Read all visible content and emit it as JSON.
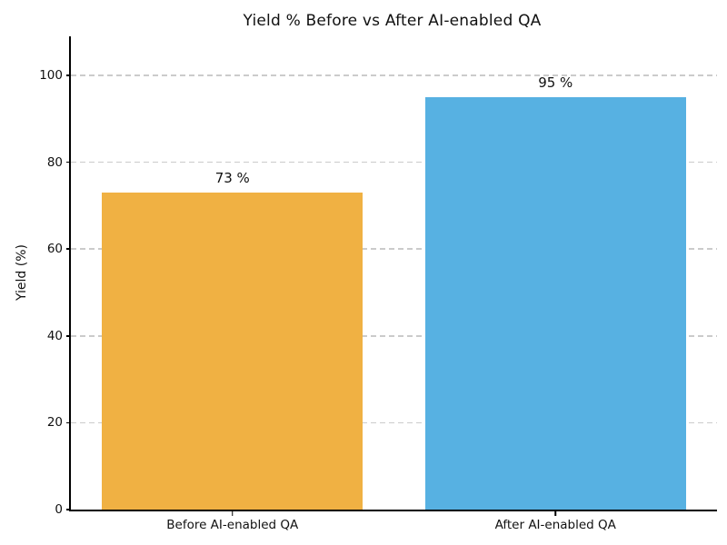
{
  "chart_data": {
    "type": "bar",
    "title": "Yield % Before vs After AI-enabled QA",
    "ylabel": "Yield (%)",
    "categories": [
      "Before AI-enabled QA",
      "After AI-enabled QA"
    ],
    "values": [
      73,
      95
    ],
    "value_labels": [
      "73 %",
      "95 %"
    ],
    "bar_colors": [
      "#F0B143",
      "#57B1E2"
    ],
    "yticks": [
      0,
      20,
      40,
      60,
      80,
      100
    ],
    "ylim": [
      0,
      109
    ],
    "grid": "horizontal-dashed",
    "gridline_color": "#cbcbcb",
    "axis_color": "#000000",
    "legend": "none"
  }
}
